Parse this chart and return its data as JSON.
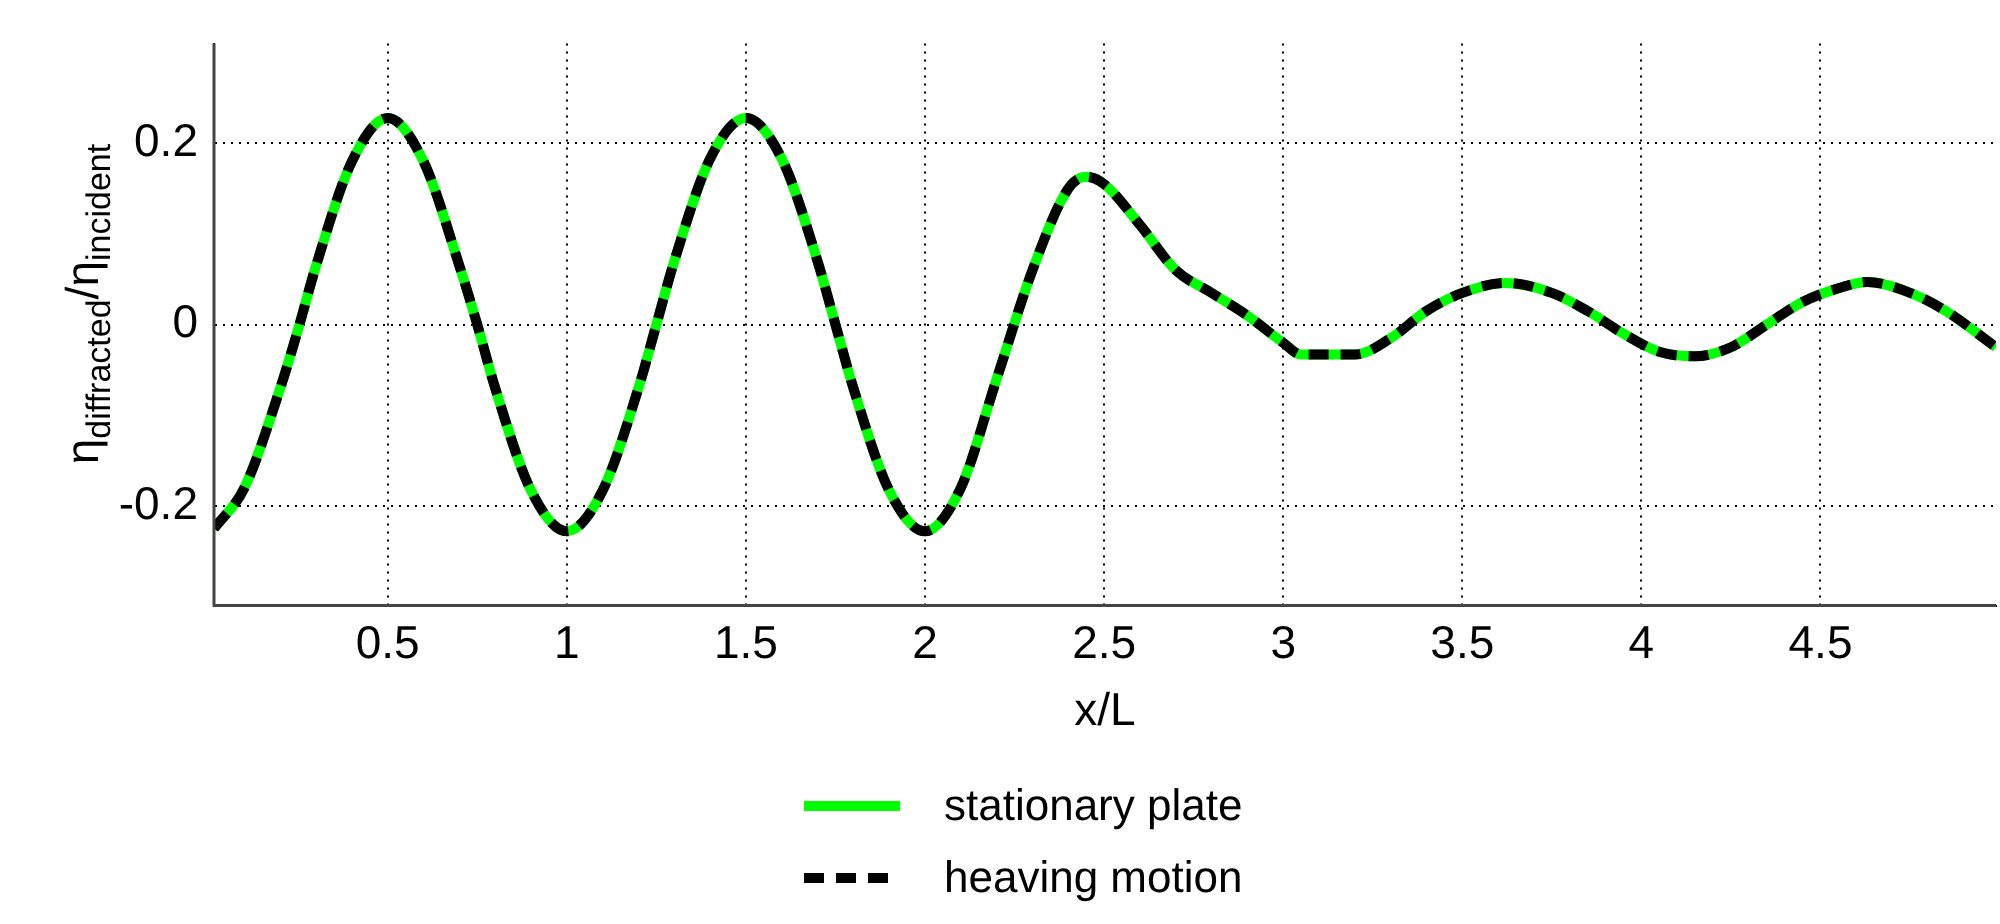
{
  "chart_data": {
    "type": "line",
    "xlabel": "x/L",
    "ylabel": "η$_{diffracted}$/η$_{incident}$",
    "xlim": [
      0.015,
      4.99
    ],
    "xticks": [
      0.5,
      1,
      1.5,
      2,
      2.5,
      3,
      3.5,
      4,
      4.5
    ],
    "ylim": [
      -0.31,
      0.31
    ],
    "yticks": [
      -0.2,
      0,
      0.2
    ],
    "grid": true,
    "legend": "bottom",
    "marker": "none",
    "x": [
      0.015,
      0.1,
      0.2,
      0.25,
      0.3,
      0.4,
      0.5,
      0.6,
      0.7,
      0.75,
      0.8,
      0.9,
      1.0,
      1.1,
      1.2,
      1.25,
      1.3,
      1.4,
      1.5,
      1.6,
      1.7,
      1.75,
      1.8,
      1.9,
      2.0,
      2.1,
      2.2,
      2.3,
      2.4,
      2.45,
      2.5,
      2.6,
      2.7,
      2.8,
      2.9,
      3.0,
      3.05,
      3.2,
      3.3,
      3.4,
      3.5,
      3.62,
      3.75,
      3.85,
      3.95,
      4.05,
      4.15,
      4.25,
      4.35,
      4.45,
      4.55,
      4.63,
      4.75,
      4.85,
      4.99
    ],
    "series": [
      {
        "name": "stationary plate",
        "color": "#00ff00",
        "line_style": "solid",
        "values": [
          -0.225,
          -0.18,
          -0.07,
          -0.005,
          0.065,
          0.18,
          0.228,
          0.18,
          0.065,
          0.0,
          -0.07,
          -0.183,
          -0.228,
          -0.183,
          -0.07,
          0.0,
          0.07,
          0.183,
          0.228,
          0.183,
          0.07,
          0.0,
          -0.07,
          -0.183,
          -0.228,
          -0.18,
          -0.06,
          0.06,
          0.15,
          0.163,
          0.155,
          0.11,
          0.06,
          0.035,
          0.01,
          -0.02,
          -0.033,
          -0.033,
          -0.015,
          0.015,
          0.035,
          0.046,
          0.035,
          0.015,
          -0.01,
          -0.03,
          -0.035,
          -0.025,
          0.0,
          0.025,
          0.04,
          0.047,
          0.035,
          0.015,
          -0.025
        ]
      },
      {
        "name": "heaving motion",
        "color": "#000000",
        "line_style": "dashed",
        "values": [
          -0.225,
          -0.18,
          -0.07,
          -0.005,
          0.065,
          0.18,
          0.228,
          0.18,
          0.065,
          0.0,
          -0.07,
          -0.183,
          -0.228,
          -0.183,
          -0.07,
          0.0,
          0.07,
          0.183,
          0.228,
          0.183,
          0.07,
          0.0,
          -0.07,
          -0.183,
          -0.228,
          -0.18,
          -0.06,
          0.06,
          0.15,
          0.163,
          0.155,
          0.11,
          0.06,
          0.035,
          0.01,
          -0.02,
          -0.033,
          -0.033,
          -0.015,
          0.015,
          0.035,
          0.046,
          0.035,
          0.015,
          -0.01,
          -0.03,
          -0.035,
          -0.025,
          0.0,
          0.025,
          0.04,
          0.047,
          0.035,
          0.015,
          -0.025
        ]
      }
    ]
  }
}
